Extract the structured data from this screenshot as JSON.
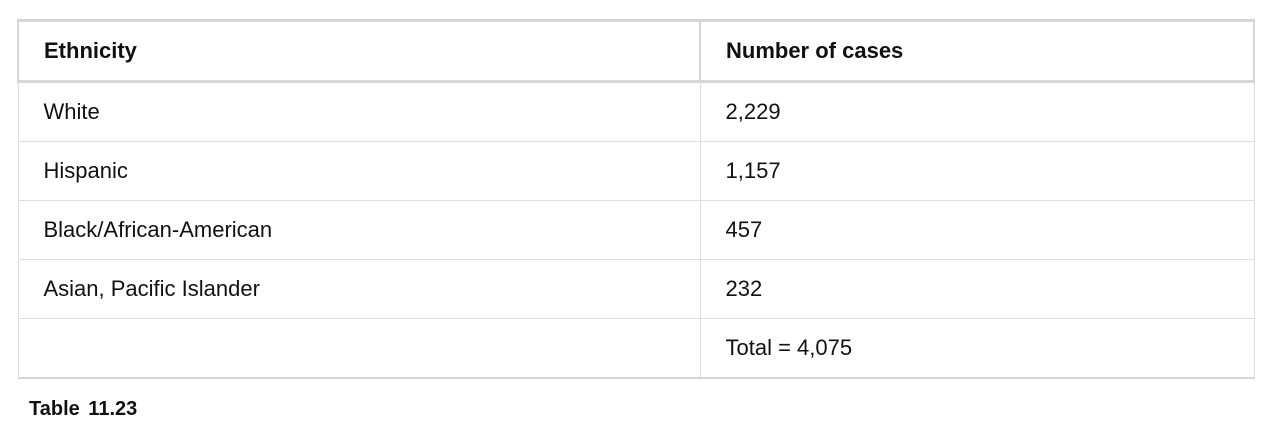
{
  "table": {
    "headers": [
      "Ethnicity",
      "Number of cases"
    ],
    "rows": [
      [
        "White",
        "2,229"
      ],
      [
        "Hispanic",
        "1,157"
      ],
      [
        "Black/African-American",
        "457"
      ],
      [
        "Asian, Pacific Islander",
        "232"
      ],
      [
        "",
        "Total = 4,075"
      ]
    ]
  },
  "caption": "Table 11.23"
}
